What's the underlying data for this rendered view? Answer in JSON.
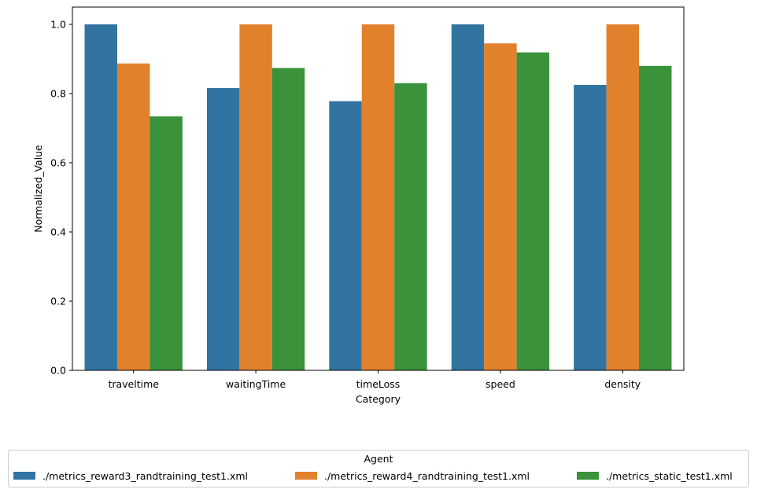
{
  "chart_data": {
    "type": "bar",
    "xlabel": "Category",
    "ylabel": "Normalized_Value",
    "categories": [
      "traveltime",
      "waitingTime",
      "timeLoss",
      "speed",
      "density"
    ],
    "ylim": [
      0,
      1.05
    ],
    "yticks": [
      0.0,
      0.2,
      0.4,
      0.6,
      0.8,
      1.0
    ],
    "ytick_labels": [
      "0.0",
      "0.2",
      "0.4",
      "0.6",
      "0.8",
      "1.0"
    ],
    "grid": false,
    "legend": {
      "title": "Agent",
      "placement": "bottom-center",
      "columns": 3
    },
    "series": [
      {
        "name": "./metrics_reward3_randtraining_test1.xml",
        "color": "#3274a1",
        "values": [
          1.0,
          0.816,
          0.778,
          1.0,
          0.825
        ]
      },
      {
        "name": "./metrics_reward4_randtraining_test1.xml",
        "color": "#e1812c",
        "values": [
          0.887,
          1.0,
          1.0,
          0.945,
          1.0
        ]
      },
      {
        "name": "./metrics_static_test1.xml",
        "color": "#3a923a",
        "values": [
          0.734,
          0.874,
          0.83,
          0.919,
          0.88
        ]
      }
    ]
  }
}
